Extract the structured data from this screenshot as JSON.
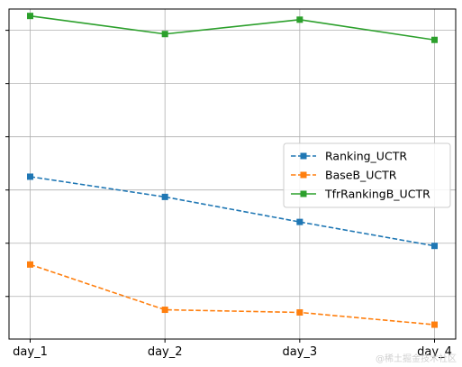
{
  "chart_data": {
    "type": "line",
    "categories": [
      "day_1",
      "day_2",
      "day_3",
      "day_4"
    ],
    "ylim": [
      0,
      6.2
    ],
    "y_tick_values": [
      0.8,
      1.8,
      2.8,
      3.8,
      4.8,
      5.8
    ],
    "y_tick_labels_shown": false,
    "grid": true,
    "legend_position": "center-right",
    "series": [
      {
        "name": "Ranking_UCTR",
        "values": [
          3.05,
          2.67,
          2.2,
          1.75
        ],
        "color": "#1f77b4",
        "linestyle": "dashed",
        "marker": "square"
      },
      {
        "name": "BaseB_UCTR",
        "values": [
          1.4,
          0.55,
          0.5,
          0.27
        ],
        "color": "#ff7f0e",
        "linestyle": "dashed",
        "marker": "square"
      },
      {
        "name": "TfrRankingB_UCTR",
        "values": [
          6.07,
          5.73,
          6.0,
          5.62
        ],
        "color": "#2ca02c",
        "linestyle": "solid",
        "marker": "square"
      }
    ]
  },
  "watermark": "@稀土掘金技术社区"
}
